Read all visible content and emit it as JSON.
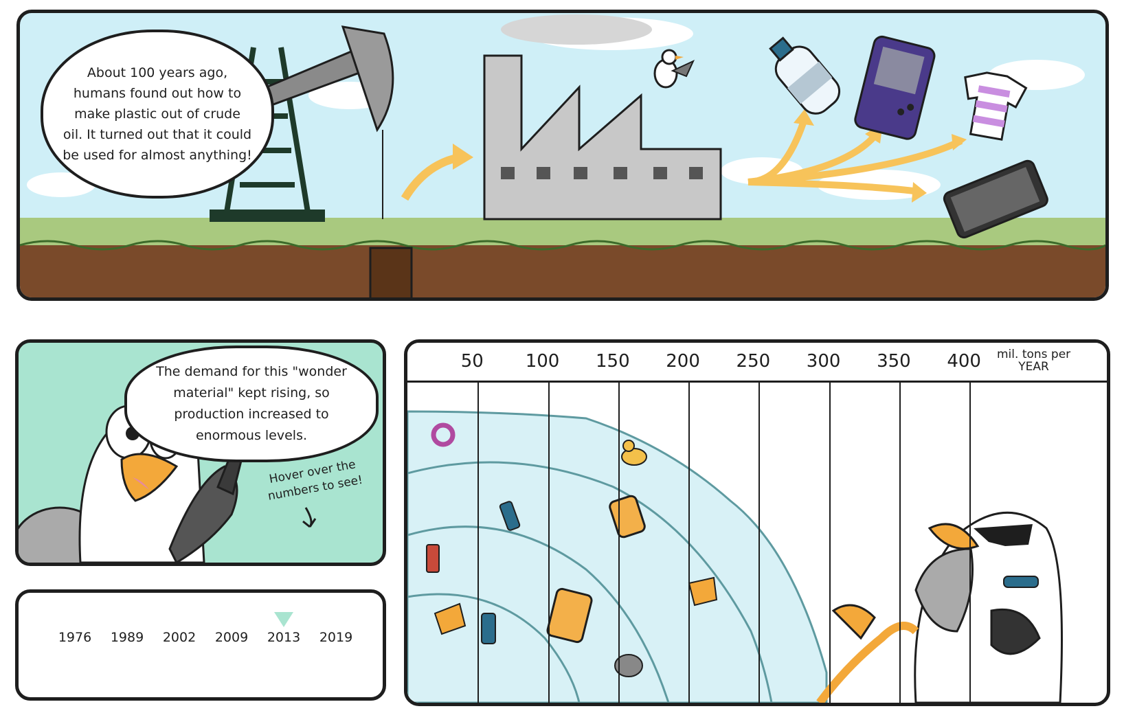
{
  "intro": {
    "text": "About 100 years ago, humans found out how to make plastic out of crude oil. It turned out that it could be used for almost anything!"
  },
  "demand": {
    "text": "The demand for this \"wonder material\" kept rising, so production increased to enormous levels.",
    "hint_line1": "Hover over the",
    "hint_line2": "numbers to see!"
  },
  "timeline": {
    "years": [
      "1976",
      "1989",
      "2002",
      "2009",
      "2013",
      "2019"
    ],
    "selected_index": 4
  },
  "chart_data": {
    "type": "area",
    "x_ticks": [
      50,
      100,
      150,
      200,
      250,
      300,
      350,
      400
    ],
    "unit_line1": "mil. tons per",
    "unit_line2": "YEAR",
    "xlim": [
      0,
      440
    ]
  },
  "colors": {
    "sky": "#cfeff7",
    "grass": "#a9c97f",
    "soil": "#7a4a2a",
    "factory": "#c8c8c8",
    "mint": "#a9e4d0",
    "arrow": "#f7c35a",
    "water": "#d8f1f6",
    "water_edge": "#5e9aa0"
  },
  "icons": [
    "oil-pump-icon",
    "factory-icon",
    "seagull-icon",
    "bottle-icon",
    "game-console-icon",
    "tshirt-icon",
    "phone-icon",
    "duck-icon",
    "sunglasses-seagull-icon"
  ]
}
